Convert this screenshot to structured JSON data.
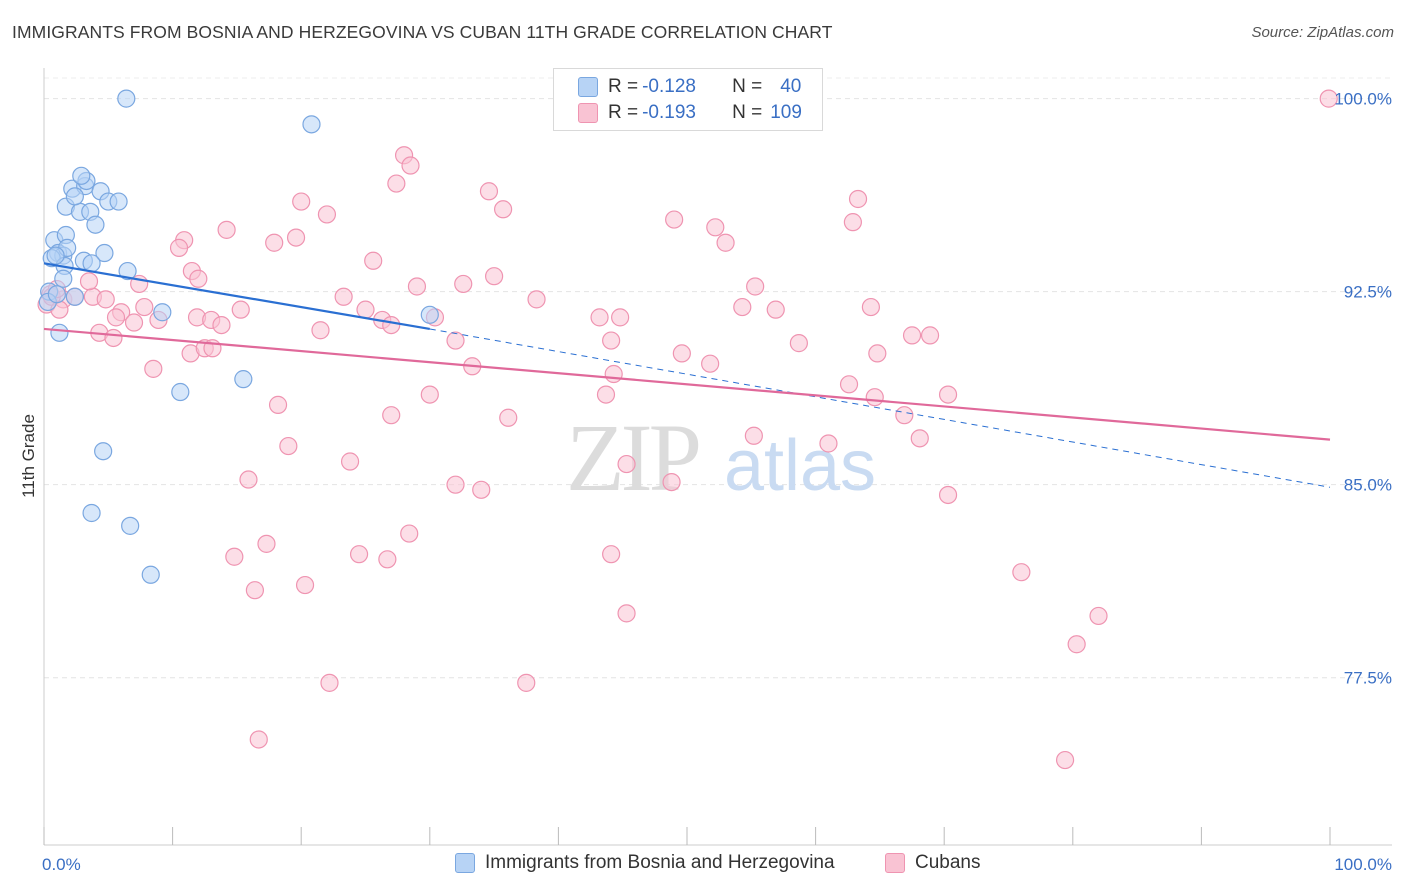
{
  "title": "IMMIGRANTS FROM BOSNIA AND HERZEGOVINA VS CUBAN 11TH GRADE CORRELATION CHART",
  "source": "Source: ZipAtlas.com",
  "watermark": {
    "zip": "ZIP",
    "atlas": "atlas"
  },
  "legend": {
    "r_label": "R =",
    "n_label": "N =",
    "rows": [
      {
        "r": "-0.128",
        "n": "40",
        "fill": "#b7d3f5",
        "stroke": "#7aa7e0"
      },
      {
        "r": "-0.193",
        "n": "109",
        "fill": "#f9c3d3",
        "stroke": "#ef94b1"
      }
    ]
  },
  "bottom_legend": [
    {
      "label": "Immigrants from Bosnia and Herzegovina",
      "fill": "#b7d3f5",
      "stroke": "#7aa7e0"
    },
    {
      "label": "Cubans",
      "fill": "#f9c3d3",
      "stroke": "#ef94b1"
    }
  ],
  "chart_data": {
    "type": "scatter",
    "xlabel": "",
    "ylabel": "11th Grade",
    "xlim": [
      0,
      100
    ],
    "ylim": [
      71,
      101.5
    ],
    "x_tick_labels": [
      "0.0%",
      "100.0%"
    ],
    "y_ticks": [
      77.5,
      85.0,
      92.5,
      100.0
    ],
    "y_tick_labels": [
      "77.5%",
      "85.0%",
      "92.5%",
      "100.0%"
    ],
    "colors": {
      "blue": "#3a6fc4",
      "blue_line": "#2a6fd2",
      "pink_line": "#e0699a",
      "axis_text": "#3a6fc4"
    },
    "series": [
      {
        "name": "Immigrants from Bosnia and Herzegovina",
        "color": "#7aa7e0",
        "fill": "#b7d3f5",
        "points": [
          [
            6.4,
            100.0
          ],
          [
            20.8,
            99.0
          ],
          [
            0.8,
            94.5
          ],
          [
            1.7,
            94.7
          ],
          [
            1.1,
            94.0
          ],
          [
            1.5,
            93.9
          ],
          [
            0.6,
            93.8
          ],
          [
            1.8,
            94.2
          ],
          [
            3.1,
            93.7
          ],
          [
            4.7,
            94.0
          ],
          [
            3.7,
            93.6
          ],
          [
            1.6,
            93.5
          ],
          [
            2.4,
            92.3
          ],
          [
            0.4,
            92.5
          ],
          [
            1.5,
            93.0
          ],
          [
            0.3,
            92.1
          ],
          [
            2.2,
            96.5
          ],
          [
            3.2,
            96.6
          ],
          [
            3.3,
            96.8
          ],
          [
            4.4,
            96.4
          ],
          [
            5.0,
            96.0
          ],
          [
            5.8,
            96.0
          ],
          [
            1.7,
            95.8
          ],
          [
            2.8,
            95.6
          ],
          [
            3.6,
            95.6
          ],
          [
            4.0,
            95.1
          ],
          [
            2.9,
            97.0
          ],
          [
            2.4,
            96.2
          ],
          [
            6.5,
            93.3
          ],
          [
            9.2,
            91.7
          ],
          [
            30.0,
            91.6
          ],
          [
            1.2,
            90.9
          ],
          [
            10.6,
            88.6
          ],
          [
            15.5,
            89.1
          ],
          [
            4.6,
            86.3
          ],
          [
            3.7,
            83.9
          ],
          [
            6.7,
            83.4
          ],
          [
            8.3,
            81.5
          ],
          [
            1.0,
            92.4
          ],
          [
            0.9,
            93.9
          ]
        ]
      },
      {
        "name": "Cubans",
        "color": "#ef94b1",
        "fill": "#f9c3d3",
        "points": [
          [
            99.9,
            100.0
          ],
          [
            28.0,
            97.8
          ],
          [
            28.5,
            97.4
          ],
          [
            27.4,
            96.7
          ],
          [
            34.6,
            96.4
          ],
          [
            20.0,
            96.0
          ],
          [
            22.0,
            95.5
          ],
          [
            35.7,
            95.7
          ],
          [
            49.0,
            95.3
          ],
          [
            63.3,
            96.1
          ],
          [
            62.9,
            95.2
          ],
          [
            52.2,
            95.0
          ],
          [
            14.2,
            94.9
          ],
          [
            10.9,
            94.5
          ],
          [
            17.9,
            94.4
          ],
          [
            19.6,
            94.6
          ],
          [
            10.5,
            94.2
          ],
          [
            53.0,
            94.4
          ],
          [
            25.6,
            93.7
          ],
          [
            11.5,
            93.3
          ],
          [
            12.0,
            93.0
          ],
          [
            35.0,
            93.1
          ],
          [
            7.4,
            92.8
          ],
          [
            32.6,
            92.8
          ],
          [
            29.0,
            92.7
          ],
          [
            55.3,
            92.7
          ],
          [
            0.5,
            92.4
          ],
          [
            1.5,
            92.2
          ],
          [
            2.4,
            92.3
          ],
          [
            3.8,
            92.3
          ],
          [
            4.8,
            92.2
          ],
          [
            23.3,
            92.3
          ],
          [
            38.3,
            92.2
          ],
          [
            54.3,
            91.9
          ],
          [
            56.9,
            91.8
          ],
          [
            64.3,
            91.9
          ],
          [
            6.0,
            91.7
          ],
          [
            7.8,
            91.9
          ],
          [
            15.3,
            91.8
          ],
          [
            25.0,
            91.8
          ],
          [
            5.6,
            91.5
          ],
          [
            8.9,
            91.4
          ],
          [
            11.9,
            91.5
          ],
          [
            13.0,
            91.4
          ],
          [
            26.3,
            91.4
          ],
          [
            27.0,
            91.2
          ],
          [
            30.4,
            91.5
          ],
          [
            43.2,
            91.5
          ],
          [
            44.8,
            91.5
          ],
          [
            13.8,
            91.2
          ],
          [
            21.5,
            91.0
          ],
          [
            4.3,
            90.9
          ],
          [
            5.4,
            90.7
          ],
          [
            7.0,
            91.3
          ],
          [
            32.0,
            90.6
          ],
          [
            44.1,
            90.6
          ],
          [
            58.7,
            90.5
          ],
          [
            67.5,
            90.8
          ],
          [
            68.9,
            90.8
          ],
          [
            11.4,
            90.1
          ],
          [
            12.5,
            90.3
          ],
          [
            13.1,
            90.3
          ],
          [
            49.6,
            90.1
          ],
          [
            64.8,
            90.1
          ],
          [
            8.5,
            89.5
          ],
          [
            33.3,
            89.6
          ],
          [
            51.8,
            89.7
          ],
          [
            44.3,
            89.3
          ],
          [
            62.6,
            88.9
          ],
          [
            64.6,
            88.4
          ],
          [
            30.0,
            88.5
          ],
          [
            43.7,
            88.5
          ],
          [
            70.3,
            88.5
          ],
          [
            18.2,
            88.1
          ],
          [
            27.0,
            87.7
          ],
          [
            36.1,
            87.6
          ],
          [
            66.9,
            87.7
          ],
          [
            55.2,
            86.9
          ],
          [
            61.0,
            86.6
          ],
          [
            68.1,
            86.8
          ],
          [
            19.0,
            86.5
          ],
          [
            23.8,
            85.9
          ],
          [
            45.3,
            85.8
          ],
          [
            15.9,
            85.2
          ],
          [
            32.0,
            85.0
          ],
          [
            34.0,
            84.8
          ],
          [
            48.8,
            85.1
          ],
          [
            70.3,
            84.6
          ],
          [
            28.4,
            83.1
          ],
          [
            17.3,
            82.7
          ],
          [
            14.8,
            82.2
          ],
          [
            24.5,
            82.3
          ],
          [
            26.7,
            82.1
          ],
          [
            44.1,
            82.3
          ],
          [
            76.0,
            81.6
          ],
          [
            16.4,
            80.9
          ],
          [
            20.3,
            81.1
          ],
          [
            45.3,
            80.0
          ],
          [
            82.0,
            79.9
          ],
          [
            80.3,
            78.8
          ],
          [
            22.2,
            77.3
          ],
          [
            37.5,
            77.3
          ],
          [
            16.7,
            75.1
          ],
          [
            79.4,
            74.3
          ],
          [
            0.2,
            92.0
          ],
          [
            0.6,
            92.3
          ],
          [
            1.2,
            91.8
          ],
          [
            3.5,
            92.9
          ],
          [
            1.0,
            92.6
          ]
        ]
      }
    ],
    "trend_lines": [
      {
        "series": "Immigrants from Bosnia and Herzegovina",
        "x": [
          0,
          30
        ],
        "y": [
          93.6,
          91.05
        ],
        "dashed_extension_to": [
          100,
          84.9
        ]
      },
      {
        "series": "Cubans",
        "x": [
          0,
          100
        ],
        "y": [
          91.05,
          86.75
        ]
      }
    ]
  }
}
